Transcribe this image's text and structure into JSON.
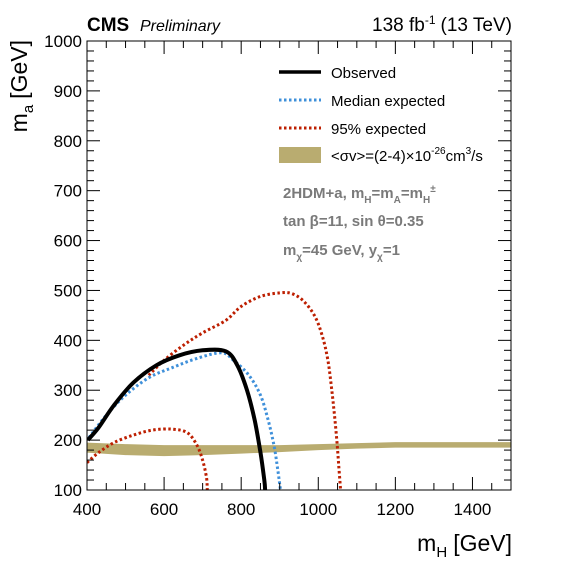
{
  "header": {
    "experiment": "CMS",
    "status": "Preliminary",
    "lumi_main": "138 fb",
    "lumi_exp": "-1",
    "lumi_energy": "(13 TeV)"
  },
  "chart_data": {
    "type": "line",
    "title": "",
    "xlabel": "m",
    "xlabel_sub": "H",
    "xlabel_unit": "[GeV]",
    "ylabel": "m",
    "ylabel_sub": "a",
    "ylabel_unit": "[GeV]",
    "xlim": [
      400,
      1500
    ],
    "ylim": [
      100,
      1000
    ],
    "x_major_ticks": [
      400,
      600,
      800,
      1000,
      1200,
      1400
    ],
    "y_major_ticks": [
      100,
      200,
      300,
      400,
      500,
      600,
      700,
      800,
      900,
      1000
    ],
    "x_minor_step": 50,
    "y_minor_step": 20,
    "legend_position": "top-right",
    "colors": {
      "observed": "#000000",
      "median": "#3f90da",
      "expected95": "#bd1f01",
      "band": "#b9ac70",
      "annotation": "#7a7a7a"
    },
    "series": [
      {
        "name": "Observed",
        "style": "solid",
        "points": [
          [
            402,
            200
          ],
          [
            430,
            225
          ],
          [
            470,
            270
          ],
          [
            520,
            315
          ],
          [
            580,
            350
          ],
          [
            640,
            370
          ],
          [
            700,
            380
          ],
          [
            760,
            378
          ],
          [
            790,
            350
          ],
          [
            815,
            300
          ],
          [
            835,
            240
          ],
          [
            850,
            175
          ],
          [
            860,
            120
          ],
          [
            862,
            100
          ]
        ]
      },
      {
        "name": "Median expected",
        "style": "dotted",
        "points": [
          [
            405,
            205
          ],
          [
            450,
            250
          ],
          [
            500,
            290
          ],
          [
            560,
            325
          ],
          [
            620,
            345
          ],
          [
            690,
            365
          ],
          [
            750,
            375
          ],
          [
            780,
            360
          ],
          [
            820,
            330
          ],
          [
            850,
            290
          ],
          [
            870,
            240
          ],
          [
            885,
            190
          ],
          [
            895,
            140
          ],
          [
            902,
            100
          ]
        ]
      },
      {
        "name": "95% expected",
        "style": "dotted",
        "segments": [
          [
            [
              560,
              330
            ],
            [
              600,
              360
            ],
            [
              650,
              390
            ],
            [
              700,
              415
            ],
            [
              760,
              440
            ],
            [
              800,
              468
            ],
            [
              850,
              488
            ],
            [
              900,
              495
            ],
            [
              930,
              494
            ],
            [
              960,
              480
            ],
            [
              990,
              450
            ],
            [
              1010,
              410
            ],
            [
              1025,
              360
            ],
            [
              1035,
              300
            ],
            [
              1042,
              250
            ],
            [
              1048,
              200
            ],
            [
              1053,
              150
            ],
            [
              1058,
              100
            ]
          ],
          [
            [
              400,
              155
            ],
            [
              430,
              175
            ],
            [
              470,
              195
            ],
            [
              520,
              210
            ],
            [
              570,
              220
            ],
            [
              620,
              222
            ],
            [
              660,
              215
            ],
            [
              685,
              190
            ],
            [
              700,
              160
            ],
            [
              710,
              125
            ],
            [
              712,
              100
            ]
          ]
        ]
      }
    ],
    "band": {
      "name": "<σv>=(2-4)×10",
      "name_exp": "-26",
      "name_unit": "cm",
      "name_unit_exp": "3",
      "name_tail": "/s",
      "points": [
        [
          400,
          175,
          195
        ],
        [
          500,
          170,
          192
        ],
        [
          600,
          168,
          190
        ],
        [
          700,
          170,
          190
        ],
        [
          800,
          173,
          190
        ],
        [
          900,
          176,
          190
        ],
        [
          1000,
          180,
          192
        ],
        [
          1100,
          183,
          194
        ],
        [
          1200,
          185,
          196
        ],
        [
          1300,
          185,
          196
        ],
        [
          1400,
          185,
          196
        ],
        [
          1500,
          185,
          196
        ]
      ]
    },
    "annotations": [
      [
        {
          "t": "2HDM+a, m"
        },
        {
          "t": "H",
          "sub": true
        },
        {
          "t": "=m"
        },
        {
          "t": "A",
          "sub": true
        },
        {
          "t": "=m"
        },
        {
          "t": "H",
          "sub": true
        },
        {
          "t": "±",
          "sup": true
        }
      ],
      [
        {
          "t": "tan β=11, sin θ=0.35"
        }
      ],
      [
        {
          "t": "m"
        },
        {
          "t": "χ",
          "sub": true
        },
        {
          "t": "=45 GeV, y"
        },
        {
          "t": "χ",
          "sub": true
        },
        {
          "t": "=1"
        }
      ]
    ]
  }
}
